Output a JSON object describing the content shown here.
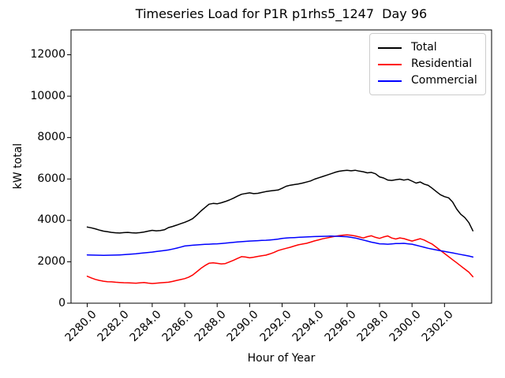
{
  "figure": {
    "title": "Timeseries Load for P1R p1rhs5_1247  Day 96",
    "xlabel": "Hour of Year",
    "ylabel": "kW total",
    "background_color": "#ffffff",
    "spine_color": "#000000"
  },
  "legend": {
    "position": "upper right",
    "border_color": "#cccccc",
    "entries": [
      {
        "label": "Total",
        "color": "#000000"
      },
      {
        "label": "Residential",
        "color": "#ff0000"
      },
      {
        "label": "Commercial",
        "color": "#0000ff"
      }
    ]
  },
  "chart_data": {
    "type": "line",
    "title": "Timeseries Load for P1R p1rhs5_1247  Day 96",
    "xlabel": "Hour of Year",
    "ylabel": "kW total",
    "grid": false,
    "legend_position": "upper right",
    "xlim": [
      2279.0,
      2304.9
    ],
    "ylim": [
      0,
      13200
    ],
    "x_ticks": [
      2280.0,
      2282.0,
      2284.0,
      2286.0,
      2288.0,
      2290.0,
      2292.0,
      2294.0,
      2296.0,
      2298.0,
      2300.0,
      2302.0
    ],
    "x_tick_labels": [
      "2280.0",
      "2282.0",
      "2284.0",
      "2286.0",
      "2288.0",
      "2290.0",
      "2292.0",
      "2294.0",
      "2296.0",
      "2298.0",
      "2300.0",
      "2302.0"
    ],
    "y_ticks": [
      0,
      2000,
      4000,
      6000,
      8000,
      10000,
      12000
    ],
    "x_tick_rotation_deg": 45,
    "x": [
      2280.0,
      2280.25,
      2280.5,
      2280.75,
      2281.0,
      2281.25,
      2281.5,
      2281.75,
      2282.0,
      2282.25,
      2282.5,
      2282.75,
      2283.0,
      2283.25,
      2283.5,
      2283.75,
      2284.0,
      2284.25,
      2284.5,
      2284.75,
      2285.0,
      2285.25,
      2285.5,
      2285.75,
      2286.0,
      2286.25,
      2286.5,
      2286.75,
      2287.0,
      2287.25,
      2287.5,
      2287.75,
      2288.0,
      2288.25,
      2288.5,
      2288.75,
      2289.0,
      2289.25,
      2289.5,
      2289.75,
      2290.0,
      2290.25,
      2290.5,
      2290.75,
      2291.0,
      2291.25,
      2291.5,
      2291.75,
      2292.0,
      2292.25,
      2292.5,
      2292.75,
      2293.0,
      2293.25,
      2293.5,
      2293.75,
      2294.0,
      2294.25,
      2294.5,
      2294.75,
      2295.0,
      2295.25,
      2295.5,
      2295.75,
      2296.0,
      2296.25,
      2296.5,
      2296.75,
      2297.0,
      2297.25,
      2297.5,
      2297.75,
      2298.0,
      2298.25,
      2298.5,
      2298.75,
      2299.0,
      2299.25,
      2299.5,
      2299.75,
      2300.0,
      2300.25,
      2300.5,
      2300.75,
      2301.0,
      2301.25,
      2301.5,
      2301.75,
      2302.0,
      2302.25,
      2302.5,
      2302.75,
      2303.0,
      2303.25,
      2303.5,
      2303.75
    ],
    "series": [
      {
        "name": "Total",
        "color": "#000000",
        "values": [
          3680,
          3640,
          3590,
          3530,
          3480,
          3450,
          3420,
          3400,
          3390,
          3410,
          3420,
          3400,
          3390,
          3410,
          3440,
          3480,
          3520,
          3495,
          3510,
          3545,
          3650,
          3705,
          3770,
          3840,
          3905,
          3985,
          4085,
          4265,
          4450,
          4620,
          4780,
          4820,
          4800,
          4850,
          4910,
          4985,
          5070,
          5170,
          5260,
          5300,
          5330,
          5290,
          5305,
          5350,
          5390,
          5420,
          5445,
          5465,
          5550,
          5650,
          5700,
          5730,
          5760,
          5800,
          5850,
          5905,
          5990,
          6055,
          6120,
          6185,
          6250,
          6320,
          6370,
          6400,
          6420,
          6395,
          6420,
          6380,
          6350,
          6295,
          6320,
          6250,
          6100,
          6050,
          5950,
          5930,
          5965,
          5990,
          5945,
          5985,
          5895,
          5800,
          5855,
          5750,
          5690,
          5545,
          5390,
          5240,
          5145,
          5090,
          4890,
          4545,
          4295,
          4140,
          3890,
          3495
        ]
      },
      {
        "name": "Residential",
        "color": "#ff0000",
        "values": [
          1300,
          1220,
          1150,
          1100,
          1060,
          1040,
          1030,
          1010,
          1000,
          990,
          985,
          975,
          965,
          985,
          995,
          970,
          950,
          965,
          985,
          1000,
          1010,
          1050,
          1100,
          1140,
          1185,
          1260,
          1360,
          1520,
          1680,
          1820,
          1930,
          1950,
          1925,
          1900,
          1915,
          1990,
          2070,
          2160,
          2250,
          2230,
          2190,
          2220,
          2260,
          2290,
          2320,
          2380,
          2450,
          2540,
          2600,
          2650,
          2700,
          2760,
          2820,
          2855,
          2890,
          2950,
          3010,
          3060,
          3110,
          3150,
          3190,
          3230,
          3265,
          3285,
          3300,
          3280,
          3250,
          3200,
          3150,
          3215,
          3255,
          3180,
          3130,
          3200,
          3250,
          3150,
          3100,
          3155,
          3120,
          3060,
          3000,
          3060,
          3115,
          3050,
          2950,
          2850,
          2700,
          2550,
          2400,
          2250,
          2100,
          1950,
          1800,
          1650,
          1500,
          1280
        ]
      },
      {
        "name": "Commercial",
        "color": "#0000ff",
        "values": [
          2330,
          2325,
          2320,
          2315,
          2310,
          2315,
          2320,
          2325,
          2330,
          2345,
          2360,
          2375,
          2390,
          2410,
          2430,
          2450,
          2470,
          2495,
          2520,
          2545,
          2570,
          2615,
          2660,
          2710,
          2760,
          2780,
          2800,
          2815,
          2830,
          2840,
          2850,
          2860,
          2870,
          2885,
          2900,
          2920,
          2940,
          2955,
          2970,
          2985,
          3000,
          3010,
          3020,
          3030,
          3040,
          3055,
          3070,
          3095,
          3130,
          3145,
          3160,
          3170,
          3180,
          3190,
          3200,
          3210,
          3220,
          3225,
          3230,
          3235,
          3240,
          3235,
          3230,
          3220,
          3210,
          3180,
          3150,
          3100,
          3050,
          3000,
          2950,
          2910,
          2870,
          2860,
          2850,
          2865,
          2880,
          2885,
          2890,
          2870,
          2850,
          2800,
          2750,
          2700,
          2650,
          2610,
          2570,
          2535,
          2500,
          2465,
          2430,
          2390,
          2350,
          2315,
          2280,
          2230
        ]
      }
    ]
  }
}
